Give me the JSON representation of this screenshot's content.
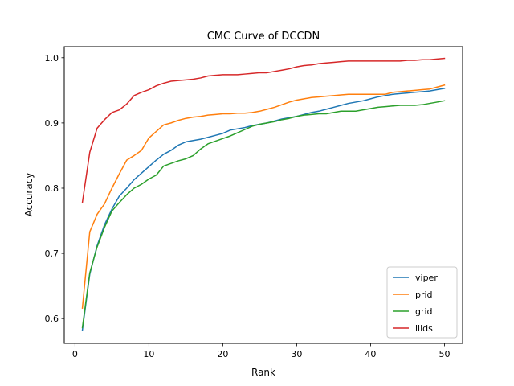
{
  "chart_data": {
    "type": "line",
    "title": "CMC Curve of DCCDN",
    "xlabel": "Rank",
    "ylabel": "Accuracy",
    "xlim": [
      -1.45,
      52.45
    ],
    "ylim": [
      0.562,
      1.017
    ],
    "xticks": [
      0,
      10,
      20,
      30,
      40,
      50
    ],
    "xtick_labels": [
      "0",
      "10",
      "20",
      "30",
      "40",
      "50"
    ],
    "yticks": [
      0.6,
      0.7,
      0.8,
      0.9,
      1.0
    ],
    "ytick_labels": [
      "0.6",
      "0.7",
      "0.8",
      "0.9",
      "1.0"
    ],
    "grid": false,
    "legend_position": "lower-right",
    "x": [
      1,
      2,
      3,
      4,
      5,
      6,
      7,
      8,
      9,
      10,
      11,
      12,
      13,
      14,
      15,
      16,
      17,
      18,
      19,
      20,
      21,
      22,
      23,
      24,
      25,
      26,
      27,
      28,
      29,
      30,
      31,
      32,
      33,
      34,
      35,
      36,
      37,
      38,
      39,
      40,
      41,
      42,
      43,
      44,
      45,
      46,
      47,
      48,
      49,
      50
    ],
    "series": [
      {
        "name": "viper",
        "color": "#1f77b4",
        "values": [
          0.582,
          0.668,
          0.712,
          0.744,
          0.768,
          0.788,
          0.8,
          0.813,
          0.823,
          0.833,
          0.843,
          0.852,
          0.858,
          0.866,
          0.871,
          0.873,
          0.875,
          0.878,
          0.881,
          0.884,
          0.889,
          0.891,
          0.893,
          0.896,
          0.898,
          0.9,
          0.903,
          0.906,
          0.908,
          0.91,
          0.913,
          0.916,
          0.918,
          0.921,
          0.924,
          0.927,
          0.93,
          0.932,
          0.934,
          0.937,
          0.94,
          0.942,
          0.944,
          0.945,
          0.946,
          0.947,
          0.948,
          0.949,
          0.951,
          0.953
        ]
      },
      {
        "name": "prid",
        "color": "#ff7f0e",
        "values": [
          0.616,
          0.733,
          0.76,
          0.776,
          0.8,
          0.822,
          0.843,
          0.85,
          0.858,
          0.877,
          0.887,
          0.897,
          0.9,
          0.904,
          0.907,
          0.909,
          0.91,
          0.912,
          0.913,
          0.914,
          0.914,
          0.915,
          0.915,
          0.916,
          0.918,
          0.921,
          0.924,
          0.928,
          0.932,
          0.935,
          0.937,
          0.939,
          0.94,
          0.941,
          0.942,
          0.943,
          0.944,
          0.944,
          0.944,
          0.944,
          0.944,
          0.944,
          0.947,
          0.948,
          0.949,
          0.95,
          0.951,
          0.952,
          0.955,
          0.958
        ]
      },
      {
        "name": "grid",
        "color": "#2ca02c",
        "values": [
          0.586,
          0.67,
          0.71,
          0.74,
          0.765,
          0.778,
          0.79,
          0.8,
          0.806,
          0.814,
          0.82,
          0.834,
          0.838,
          0.842,
          0.845,
          0.85,
          0.86,
          0.868,
          0.872,
          0.876,
          0.88,
          0.885,
          0.89,
          0.895,
          0.898,
          0.9,
          0.902,
          0.905,
          0.907,
          0.91,
          0.912,
          0.913,
          0.914,
          0.914,
          0.916,
          0.918,
          0.918,
          0.918,
          0.92,
          0.922,
          0.924,
          0.925,
          0.926,
          0.927,
          0.927,
          0.927,
          0.928,
          0.93,
          0.932,
          0.934
        ]
      },
      {
        "name": "ilids",
        "color": "#d62728",
        "values": [
          0.778,
          0.855,
          0.892,
          0.905,
          0.916,
          0.92,
          0.929,
          0.942,
          0.947,
          0.951,
          0.957,
          0.961,
          0.964,
          0.965,
          0.966,
          0.967,
          0.969,
          0.972,
          0.973,
          0.974,
          0.974,
          0.974,
          0.975,
          0.976,
          0.977,
          0.977,
          0.979,
          0.981,
          0.983,
          0.986,
          0.988,
          0.989,
          0.991,
          0.992,
          0.993,
          0.994,
          0.995,
          0.995,
          0.995,
          0.995,
          0.995,
          0.995,
          0.995,
          0.995,
          0.996,
          0.996,
          0.997,
          0.997,
          0.998,
          0.999
        ]
      }
    ]
  }
}
